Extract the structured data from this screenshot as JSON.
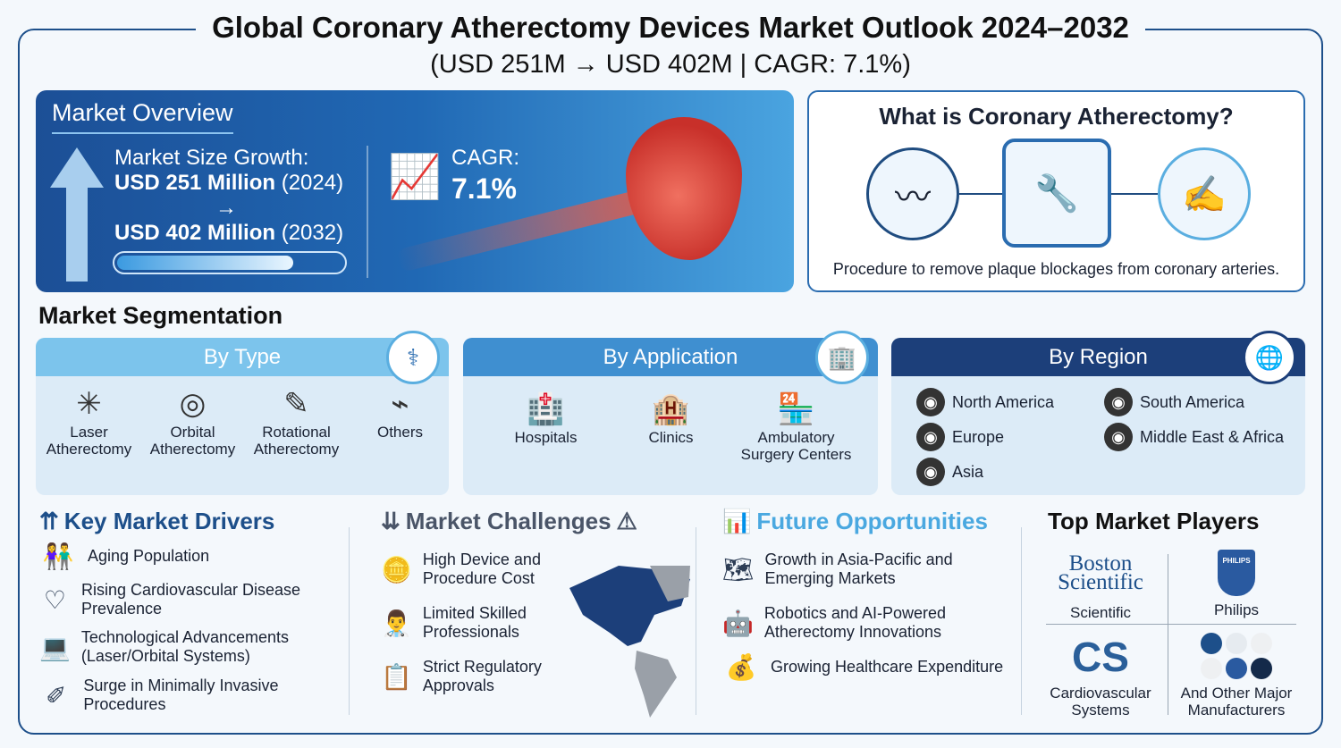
{
  "title": "Global Coronary Atherectomy Devices Market Outlook 2024–2032",
  "subtitle": "(USD 251M → USD 402M | CAGR: 7.1%)",
  "overview": {
    "title": "Market Overview",
    "growth_label": "Market Size Growth:",
    "start_value": "USD 251 Million",
    "start_year": "(2024)",
    "arrow": "→",
    "end_value": "USD 402 Million",
    "end_year": "(2032)",
    "progress_fraction": 0.78,
    "cagr_label": "CAGR:",
    "cagr_value": "7.1%"
  },
  "what": {
    "title": "What is Coronary Atherectomy?",
    "description": "Procedure to remove plaque blockages from coronary arteries.",
    "icons": [
      "plaque-artery-icon",
      "atherectomy-device-icon",
      "surgeon-hand-icon"
    ]
  },
  "segmentation": {
    "title": "Market Segmentation",
    "by_type": {
      "title": "By Type",
      "items": [
        {
          "label": "Laser Atherectomy",
          "icon": "laser-icon"
        },
        {
          "label": "Orbital Atherectomy",
          "icon": "orbital-icon"
        },
        {
          "label": "Rotational Atherectomy",
          "icon": "rotational-icon"
        },
        {
          "label": "Others",
          "icon": "device-icon"
        }
      ]
    },
    "by_application": {
      "title": "By Application",
      "items": [
        {
          "label": "Hospitals",
          "icon": "hospital-icon"
        },
        {
          "label": "Clinics",
          "icon": "clinic-icon"
        },
        {
          "label": "Ambulatory Surgery Centers",
          "icon": "ambulatory-icon"
        }
      ]
    },
    "by_region": {
      "title": "By Region",
      "items": [
        "North America",
        "South America",
        "Europe",
        "Middle East & Africa",
        "Asia"
      ]
    }
  },
  "drivers": {
    "title": "Key Market Drivers",
    "items": [
      "Aging Population",
      "Rising Cardiovascular Disease Prevalence",
      "Technological Advancements (Laser/Orbital Systems)",
      "Surge in Minimally Invasive Procedures"
    ]
  },
  "challenges": {
    "title": "Market Challenges",
    "items": [
      "High Device and Procedure Cost",
      "Limited Skilled Professionals",
      "Strict Regulatory Approvals"
    ]
  },
  "opportunities": {
    "title": "Future Opportunities",
    "items": [
      "Growth in Asia-Pacific and Emerging Markets",
      "Robotics and AI-Powered Atherectomy Innovations",
      "Growing Healthcare Expenditure"
    ]
  },
  "players": {
    "title": "Top Market Players",
    "logo_boston": "Boston Scientific",
    "logo_philips": "PHILIPS",
    "logo_csi": "CS",
    "items": [
      "Scientific",
      "Philips",
      "Cardiovascular Systems",
      "And Other Major Manufacturers"
    ]
  },
  "colors": {
    "navy": "#1d4f8a",
    "type_header": "#7cc4ec",
    "app_header": "#3f8fd0",
    "region_header": "#1c3f7a",
    "opportunity": "#4aa8e0"
  }
}
